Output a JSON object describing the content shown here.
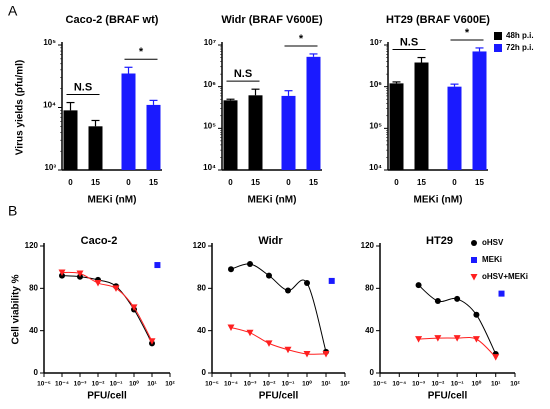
{
  "panels": [
    "A",
    "B"
  ],
  "chart_data": [
    {
      "type": "bar",
      "title": "Caco-2 (BRAF wt)",
      "ylabel": "Virus yields (pfu/ml)",
      "xlabel": "MEKi (nM)",
      "categories": [
        "0",
        "15",
        "0",
        "15"
      ],
      "log": true,
      "ylim": [
        1000,
        100000
      ],
      "yticks": [
        {
          "value": 1000,
          "label": "10³"
        },
        {
          "value": 10000,
          "label": "10⁴"
        },
        {
          "value": 100000,
          "label": "10⁵"
        }
      ],
      "series": [
        {
          "name": "48h p.i.",
          "color": "#000000",
          "values": [
            9000,
            5000,
            null,
            null
          ],
          "errors": [
            3000,
            1200,
            null,
            null
          ]
        },
        {
          "name": "72h p.i.",
          "color": "#1a1aff",
          "values": [
            null,
            null,
            35000,
            11000
          ],
          "errors": [
            null,
            null,
            9000,
            2000
          ]
        }
      ],
      "annotations": [
        "N.S",
        "*"
      ]
    },
    {
      "type": "bar",
      "title": "Widr (BRAF V600E)",
      "xlabel": "MEKi (nM)",
      "categories": [
        "0",
        "15",
        "0",
        "15"
      ],
      "log": true,
      "ylim": [
        10000,
        10000000
      ],
      "yticks": [
        {
          "value": 10000,
          "label": "10⁴"
        },
        {
          "value": 100000,
          "label": "10⁵"
        },
        {
          "value": 1000000,
          "label": "10⁶"
        },
        {
          "value": 10000000,
          "label": "10⁷"
        }
      ],
      "series": [
        {
          "name": "48h p.i.",
          "color": "#000000",
          "values": [
            470000,
            620000,
            null,
            null
          ],
          "errors": [
            30000,
            250000,
            null,
            null
          ]
        },
        {
          "name": "72h p.i.",
          "color": "#1a1aff",
          "values": [
            null,
            null,
            600000,
            5200000
          ],
          "errors": [
            null,
            null,
            200000,
            900000
          ]
        }
      ],
      "annotations": [
        "N.S",
        "*"
      ]
    },
    {
      "type": "bar",
      "title": "HT29 (BRAF V600E)",
      "xlabel": "MEKi (nM)",
      "categories": [
        "0",
        "15",
        "0",
        "15"
      ],
      "log": true,
      "ylim": [
        10000,
        10000000
      ],
      "legend": "right",
      "yticks": [
        {
          "value": 10000,
          "label": "10⁴"
        },
        {
          "value": 100000,
          "label": "10⁵"
        },
        {
          "value": 1000000,
          "label": "10⁶"
        },
        {
          "value": 10000000,
          "label": "10⁷"
        }
      ],
      "series": [
        {
          "name": "48h p.i.",
          "color": "#000000",
          "values": [
            1200000,
            3800000,
            null,
            null
          ],
          "errors": [
            100000,
            1200000,
            null,
            null
          ]
        },
        {
          "name": "72h p.i.",
          "color": "#1a1aff",
          "values": [
            null,
            null,
            1000000,
            7000000
          ],
          "errors": [
            null,
            null,
            150000,
            1500000
          ]
        }
      ],
      "annotations": [
        "N.S",
        "*"
      ]
    },
    {
      "type": "scatter",
      "title": "Caco-2",
      "ylabel": "Cell viability %",
      "xlabel": "PFU/cell",
      "xlog": true,
      "xlim": [
        1e-05,
        100
      ],
      "ylim": [
        0,
        120
      ],
      "yticks": [
        0,
        40,
        80,
        120
      ],
      "xticks": [
        {
          "value": 1e-05,
          "label": "10⁻⁵"
        },
        {
          "value": 0.0001,
          "label": "10⁻⁴"
        },
        {
          "value": 0.001,
          "label": "10⁻³"
        },
        {
          "value": 0.01,
          "label": "10⁻²"
        },
        {
          "value": 0.1,
          "label": "10⁻¹"
        },
        {
          "value": 1,
          "label": "10⁰"
        },
        {
          "value": 10,
          "label": "10¹"
        },
        {
          "value": 100,
          "label": "10²"
        }
      ],
      "series": [
        {
          "name": "oHSV",
          "color": "#000000",
          "marker": "circle",
          "fit_line": true,
          "x": [
            0.0001,
            0.001,
            0.01,
            0.1,
            1,
            10
          ],
          "values": [
            92,
            91,
            88,
            82,
            60,
            28
          ]
        },
        {
          "name": "MEKi",
          "color": "#1a1aff",
          "marker": "square",
          "x": [
            20
          ],
          "values": [
            102
          ]
        },
        {
          "name": "oHSV+MEKi",
          "color": "#ff2020",
          "marker": "triangle",
          "fit_line": true,
          "x": [
            0.0001,
            0.001,
            0.01,
            0.1,
            1,
            10
          ],
          "values": [
            95,
            94,
            85,
            80,
            62,
            30
          ]
        }
      ]
    },
    {
      "type": "scatter",
      "title": "Widr",
      "xlabel": "PFU/cell",
      "xlog": true,
      "xlim": [
        1e-05,
        100
      ],
      "ylim": [
        0,
        120
      ],
      "yticks": [
        0,
        40,
        80,
        120
      ],
      "xticks": [
        {
          "value": 1e-05,
          "label": "10⁻⁵"
        },
        {
          "value": 0.0001,
          "label": "10⁻⁴"
        },
        {
          "value": 0.001,
          "label": "10⁻³"
        },
        {
          "value": 0.01,
          "label": "10⁻²"
        },
        {
          "value": 0.1,
          "label": "10⁻¹"
        },
        {
          "value": 1,
          "label": "10⁰"
        },
        {
          "value": 10,
          "label": "10¹"
        },
        {
          "value": 100,
          "label": "10²"
        }
      ],
      "series": [
        {
          "name": "oHSV",
          "color": "#000000",
          "marker": "circle",
          "fit_line": true,
          "x": [
            0.0001,
            0.001,
            0.01,
            0.1,
            1,
            10
          ],
          "values": [
            98,
            103,
            92,
            78,
            85,
            20
          ]
        },
        {
          "name": "MEKi",
          "color": "#1a1aff",
          "marker": "square",
          "x": [
            20
          ],
          "values": [
            87
          ]
        },
        {
          "name": "oHSV+MEKi",
          "color": "#ff2020",
          "marker": "triangle",
          "fit_line": true,
          "x": [
            0.0001,
            0.001,
            0.01,
            0.1,
            1,
            10
          ],
          "values": [
            43,
            38,
            28,
            22,
            18,
            18
          ]
        }
      ]
    },
    {
      "type": "scatter",
      "title": "HT29",
      "xlabel": "PFU/cell",
      "xlog": true,
      "legend": "right",
      "xlim": [
        1e-05,
        100
      ],
      "ylim": [
        0,
        120
      ],
      "yticks": [
        0,
        40,
        80,
        120
      ],
      "xticks": [
        {
          "value": 1e-05,
          "label": "10⁻⁵"
        },
        {
          "value": 0.0001,
          "label": "10⁻⁴"
        },
        {
          "value": 0.001,
          "label": "10⁻³"
        },
        {
          "value": 0.01,
          "label": "10⁻²"
        },
        {
          "value": 0.1,
          "label": "10⁻¹"
        },
        {
          "value": 1,
          "label": "10⁰"
        },
        {
          "value": 10,
          "label": "10¹"
        },
        {
          "value": 100,
          "label": "10²"
        }
      ],
      "series": [
        {
          "name": "oHSV",
          "color": "#000000",
          "marker": "circle",
          "fit_line": true,
          "x": [
            0.001,
            0.01,
            0.1,
            1,
            10
          ],
          "values": [
            83,
            68,
            70,
            55,
            18
          ]
        },
        {
          "name": "MEKi",
          "color": "#1a1aff",
          "marker": "square",
          "x": [
            20
          ],
          "values": [
            75
          ]
        },
        {
          "name": "oHSV+MEKi",
          "color": "#ff2020",
          "marker": "triangle",
          "fit_line": true,
          "x": [
            0.001,
            0.01,
            0.1,
            1,
            10
          ],
          "values": [
            32,
            33,
            33,
            32,
            15
          ]
        }
      ]
    }
  ]
}
